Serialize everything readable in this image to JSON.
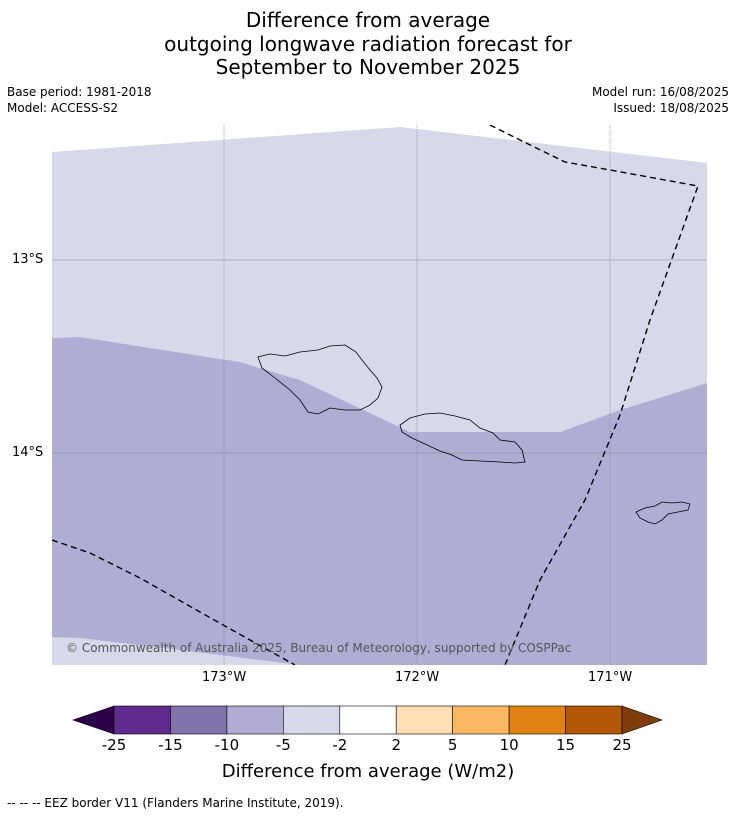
{
  "title": {
    "line1": "Difference from average",
    "line2": "outgoing longwave radiation forecast for",
    "line3": "September to November 2025"
  },
  "meta": {
    "base_period": "Base period: 1981-2018",
    "model": "Model: ACCESS-S2",
    "model_run": "Model run: 16/08/2025",
    "issued": "Issued: 18/08/2025"
  },
  "map": {
    "lat_labels": [
      "13°S",
      "14°S"
    ],
    "lon_labels": [
      "173°W",
      "172°W",
      "171°W"
    ],
    "copyright": "© Commonwealth of Australia 2025, Bureau of Meteorology, supported by COSPPac",
    "category_colors": {
      "light": "#d8d8ea",
      "mid": "#b1acd4"
    }
  },
  "colorbar": {
    "ticks": [
      "-25",
      "-15",
      "-10",
      "-5",
      "-2",
      "2",
      "5",
      "10",
      "15",
      "25"
    ],
    "colors": [
      "#2d004b",
      "#5e2a8e",
      "#8073ac",
      "#b2abd2",
      "#d8daeb",
      "#ffffff",
      "#fee0b6",
      "#fdb863",
      "#e08214",
      "#b35806",
      "#7f3b08"
    ],
    "label": "Difference from average (W/m2)"
  },
  "footer": "--  --  -- EEZ border V11 (Flanders Marine Institute, 2019)."
}
